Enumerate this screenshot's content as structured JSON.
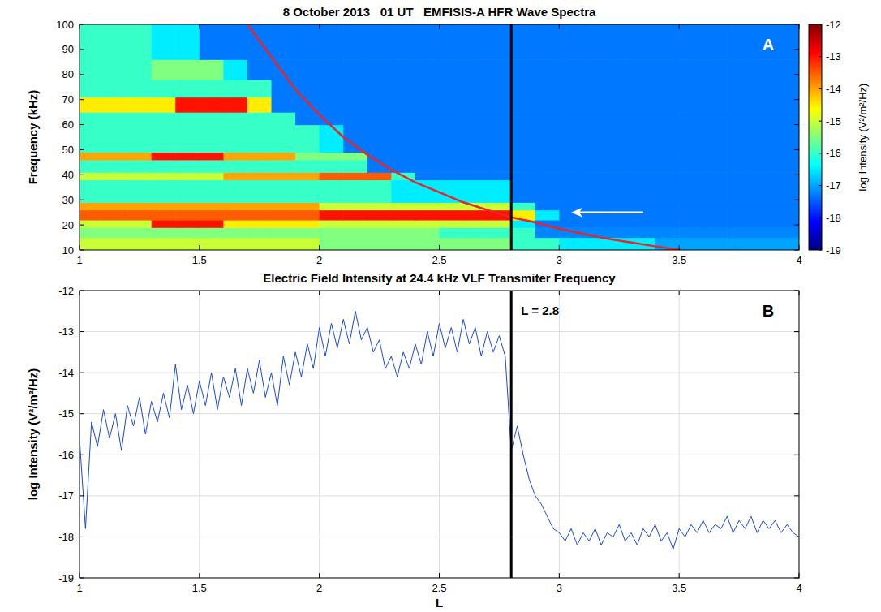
{
  "chart_data": [
    {
      "type": "heatmap",
      "title": "8 October 2013   01 UT   EMFISIS-A HFR Wave Spectra",
      "y_label": "Frequency (kHz)",
      "panel_label": "A",
      "xlim": [
        1,
        4
      ],
      "xticks": [
        1,
        1.5,
        2,
        2.5,
        3,
        3.5,
        4
      ],
      "ylim": [
        10,
        100
      ],
      "yticks": [
        10,
        20,
        30,
        40,
        50,
        60,
        70,
        80,
        90,
        100
      ],
      "grid": false,
      "x_edges": [
        1,
        1.1,
        1.2,
        1.3,
        1.4,
        1.5,
        1.6,
        1.7,
        1.8,
        1.9,
        2,
        2.1,
        2.2,
        2.3,
        2.4,
        2.5,
        2.6,
        2.7,
        2.8,
        2.9,
        3,
        3.1,
        3.2,
        3.3,
        3.4,
        3.5,
        3.6,
        3.7,
        3.8,
        3.9,
        4
      ],
      "y_edges": [
        10,
        15,
        19,
        22,
        26,
        29,
        38,
        41,
        46,
        49,
        60,
        65,
        71,
        78,
        86,
        100
      ],
      "cells": [
        [
          -15,
          -15,
          -15,
          -15,
          -15,
          -15,
          -15,
          -15,
          -15,
          -15,
          -15.5,
          -15.5,
          -15.5,
          -15.5,
          -15.5,
          -15.5,
          -15.5,
          -15.5,
          -16,
          -16,
          -16.5,
          -16.5,
          -16.5,
          -16.5,
          -17,
          -17,
          -17,
          -17,
          -17,
          -17
        ],
        [
          -15.5,
          -15.5,
          -15.5,
          -15.5,
          -15.5,
          -15.5,
          -15.5,
          -15.5,
          -15.5,
          -15.5,
          -15.5,
          -15.5,
          -15.5,
          -15.5,
          -15.5,
          -16,
          -16,
          -16,
          -16,
          -17.2,
          -17.2,
          -17.2,
          -17.2,
          -17.2,
          -17.2,
          -17.2,
          -17.2,
          -17.2,
          -17.2,
          -17.2
        ],
        [
          -15,
          -15,
          -15,
          -13,
          -13,
          -13,
          -14.5,
          -14.5,
          -14.5,
          -14.5,
          -15,
          -15,
          -15,
          -15,
          -15,
          -15,
          -15,
          -15,
          -16.5,
          -17.3,
          -17.3,
          -17.3,
          -17.3,
          -17.3,
          -17.3,
          -17.3,
          -17.3,
          -17.3,
          -17.3,
          -17.3
        ],
        [
          -13.5,
          -13.5,
          -13.5,
          -13.5,
          -13.5,
          -13.5,
          -13.5,
          -13.5,
          -13.5,
          -13.5,
          -13,
          -13,
          -13,
          -13,
          -13,
          -13,
          -13,
          -13,
          -14.5,
          -16.5,
          -17.3,
          -17.3,
          -17.3,
          -17.3,
          -17.3,
          -17.3,
          -17.3,
          -17.3,
          -17.3,
          -17.3
        ],
        [
          -14,
          -14,
          -14,
          -14,
          -14,
          -14,
          -14,
          -14,
          -14,
          -14,
          -15,
          -15,
          -15,
          -15,
          -15,
          -15,
          -15,
          -15,
          -16,
          -17.3,
          -17.3,
          -17.3,
          -17.3,
          -17.3,
          -17.3,
          -17.3,
          -17.3,
          -17.3,
          -17.3,
          -17.3
        ],
        [
          -16,
          -16,
          -16,
          -16,
          -16,
          -16,
          -16,
          -16,
          -16,
          -16,
          -16,
          -16,
          -16,
          -16.5,
          -16.5,
          -16.5,
          -16.5,
          -16.5,
          -17.3,
          -17.3,
          -17.3,
          -17.3,
          -17.3,
          -17.3,
          -17.3,
          -17.3,
          -17.3,
          -17.3,
          -17.3,
          -17.3
        ],
        [
          -15,
          -15,
          -15,
          -15,
          -15,
          -15,
          -14,
          -14,
          -14,
          -14,
          -13.5,
          -13.5,
          -13.5,
          -16,
          -17.3,
          -17.3,
          -17.3,
          -17.3,
          -17.3,
          -17.3,
          -17.3,
          -17.3,
          -17.3,
          -17.3,
          -17.3,
          -17.3,
          -17.3,
          -17.3,
          -17.3,
          -17.3
        ],
        [
          -16,
          -16,
          -16,
          -16,
          -16,
          -16,
          -16,
          -16,
          -16,
          -16,
          -16,
          -16,
          -17.3,
          -17.3,
          -17.3,
          -17.3,
          -17.3,
          -17.3,
          -17.3,
          -17.3,
          -17.3,
          -17.3,
          -17.3,
          -17.3,
          -17.3,
          -17.3,
          -17.3,
          -17.3,
          -17.3,
          -17.3
        ],
        [
          -14,
          -14,
          -14,
          -13,
          -13,
          -13,
          -14,
          -14,
          -14,
          -15.5,
          -15.5,
          -15.5,
          -17.3,
          -17.3,
          -17.3,
          -17.3,
          -17.3,
          -17.3,
          -17.3,
          -17.3,
          -17.3,
          -17.3,
          -17.3,
          -17.3,
          -17.3,
          -17.3,
          -17.3,
          -17.3,
          -17.3,
          -17.3
        ],
        [
          -16,
          -16,
          -16,
          -16,
          -16,
          -16,
          -16,
          -16,
          -16,
          -16,
          -16.5,
          -17.3,
          -17.3,
          -17.3,
          -17.3,
          -17.3,
          -17.3,
          -17.3,
          -17.3,
          -17.3,
          -17.3,
          -17.3,
          -17.3,
          -17.3,
          -17.3,
          -17.3,
          -17.3,
          -17.3,
          -17.3,
          -17.3
        ],
        [
          -16,
          -16,
          -16,
          -16,
          -16,
          -16,
          -16,
          -16,
          -16,
          -17.3,
          -17.3,
          -17.3,
          -17.3,
          -17.3,
          -17.3,
          -17.3,
          -17.3,
          -17.3,
          -17.3,
          -17.3,
          -17.3,
          -17.3,
          -17.3,
          -17.3,
          -17.3,
          -17.3,
          -17.3,
          -17.3,
          -17.3,
          -17.3
        ],
        [
          -14.5,
          -14.5,
          -14.5,
          -14.5,
          -13,
          -13,
          -13,
          -14.5,
          -17.3,
          -17.3,
          -17.3,
          -17.3,
          -17.3,
          -17.3,
          -17.3,
          -17.3,
          -17.3,
          -17.3,
          -17.3,
          -17.3,
          -17.3,
          -17.3,
          -17.3,
          -17.3,
          -17.3,
          -17.3,
          -17.3,
          -17.3,
          -17.3,
          -17.3
        ],
        [
          -16,
          -16,
          -16,
          -16,
          -16,
          -16,
          -16,
          -16,
          -17.3,
          -17.3,
          -17.3,
          -17.3,
          -17.3,
          -17.3,
          -17.3,
          -17.3,
          -17.3,
          -17.3,
          -17.3,
          -17.3,
          -17.3,
          -17.3,
          -17.3,
          -17.3,
          -17.3,
          -17.3,
          -17.3,
          -17.3,
          -17.3,
          -17.3
        ],
        [
          -16,
          -16,
          -16,
          -15.5,
          -15.5,
          -15.5,
          -16.5,
          -17.3,
          -17.3,
          -17.3,
          -17.3,
          -17.3,
          -17.3,
          -17.3,
          -17.3,
          -17.3,
          -17.3,
          -17.3,
          -17.3,
          -17.3,
          -17.3,
          -17.3,
          -17.3,
          -17.3,
          -17.3,
          -17.3,
          -17.3,
          -17.3,
          -17.3,
          -17.3
        ],
        [
          -16,
          -16,
          -16,
          -16.5,
          -16.5,
          -17.3,
          -17.3,
          -17.3,
          -17.3,
          -17.3,
          -17.3,
          -17.3,
          -17.3,
          -17.3,
          -17.3,
          -17.3,
          -17.3,
          -17.3,
          -17.3,
          -17.3,
          -17.3,
          -17.3,
          -17.3,
          -17.3,
          -17.3,
          -17.3,
          -17.3,
          -17.3,
          -17.3,
          -17.3
        ]
      ],
      "colorbar": {
        "label": "log Intensity (V²/m²/Hz)",
        "range": [
          -19,
          -12
        ],
        "ticks": [
          -12,
          -13,
          -14,
          -15,
          -16,
          -17,
          -18,
          -19
        ]
      },
      "series": [
        {
          "type": "line",
          "color": "#e8262a",
          "x": [
            1.7,
            1.8,
            1.9,
            2,
            2.1,
            2.2,
            2.3,
            2.4,
            2.5,
            2.6,
            2.7,
            2.8,
            2.9,
            3,
            3.1,
            3.2,
            3.3,
            3.4,
            3.5
          ],
          "values": [
            100,
            87,
            74,
            64,
            55,
            48,
            42,
            37,
            33,
            29,
            26,
            23,
            21,
            18.5,
            16.5,
            14.5,
            13,
            11.5,
            10
          ]
        }
      ],
      "reference_line": {
        "x": 2.8,
        "color": "#000000"
      },
      "arrow": {
        "x_from": 3.35,
        "x_to": 3.05,
        "y": 25,
        "color": "#ffffff"
      }
    },
    {
      "type": "line",
      "title": "Electric Field Intensity at 24.4 kHz VLF Transmiter Frequency",
      "x_label": "L",
      "y_label": "log Intensity (V²/m²/Hz)",
      "panel_label": "B",
      "xlim": [
        1,
        4
      ],
      "xticks": [
        1,
        1.5,
        2,
        2.5,
        3,
        3.5,
        4
      ],
      "ylim": [
        -19,
        -12
      ],
      "yticks": [
        -19,
        -18,
        -17,
        -16,
        -15,
        -14,
        -13,
        -12
      ],
      "grid": true,
      "series": [
        {
          "color": "#1a4ad6",
          "x": [
            1,
            1.025,
            1.05,
            1.075,
            1.1,
            1.125,
            1.15,
            1.175,
            1.2,
            1.225,
            1.25,
            1.275,
            1.3,
            1.325,
            1.35,
            1.375,
            1.4,
            1.425,
            1.45,
            1.475,
            1.5,
            1.525,
            1.55,
            1.575,
            1.6,
            1.625,
            1.65,
            1.675,
            1.7,
            1.725,
            1.75,
            1.775,
            1.8,
            1.825,
            1.85,
            1.875,
            1.9,
            1.925,
            1.95,
            1.975,
            2,
            2.025,
            2.05,
            2.075,
            2.1,
            2.125,
            2.15,
            2.175,
            2.2,
            2.225,
            2.25,
            2.275,
            2.3,
            2.325,
            2.35,
            2.375,
            2.4,
            2.425,
            2.45,
            2.475,
            2.5,
            2.525,
            2.55,
            2.575,
            2.6,
            2.625,
            2.65,
            2.675,
            2.7,
            2.725,
            2.75,
            2.775,
            2.8,
            2.825,
            2.85,
            2.875,
            2.9,
            2.925,
            2.95,
            2.975,
            3,
            3.025,
            3.05,
            3.075,
            3.1,
            3.125,
            3.15,
            3.175,
            3.2,
            3.225,
            3.25,
            3.275,
            3.3,
            3.325,
            3.35,
            3.375,
            3.4,
            3.425,
            3.45,
            3.475,
            3.5,
            3.525,
            3.55,
            3.575,
            3.6,
            3.625,
            3.65,
            3.675,
            3.7,
            3.725,
            3.75,
            3.775,
            3.8,
            3.825,
            3.85,
            3.875,
            3.9,
            3.925,
            3.95,
            3.975,
            4
          ],
          "values": [
            -15.6,
            -17.8,
            -15.2,
            -15.8,
            -14.9,
            -15.6,
            -15.0,
            -15.9,
            -14.8,
            -15.3,
            -14.6,
            -15.5,
            -14.7,
            -15.2,
            -14.5,
            -15.1,
            -13.8,
            -14.9,
            -14.3,
            -15.0,
            -14.2,
            -14.8,
            -14.0,
            -14.9,
            -14.1,
            -14.6,
            -13.9,
            -14.8,
            -13.9,
            -14.5,
            -13.7,
            -14.6,
            -14.0,
            -14.8,
            -13.6,
            -14.3,
            -13.5,
            -14.1,
            -13.3,
            -13.9,
            -12.9,
            -13.6,
            -12.8,
            -13.4,
            -12.7,
            -13.3,
            -12.5,
            -13.2,
            -12.9,
            -13.5,
            -13.2,
            -13.9,
            -13.6,
            -14.1,
            -13.5,
            -13.9,
            -13.3,
            -13.8,
            -13.0,
            -13.6,
            -12.8,
            -13.4,
            -12.9,
            -13.5,
            -12.7,
            -13.3,
            -12.9,
            -13.6,
            -13.0,
            -13.5,
            -13.1,
            -13.6,
            -15.9,
            -15.3,
            -16.0,
            -16.6,
            -17.0,
            -17.2,
            -17.5,
            -17.8,
            -17.9,
            -18.1,
            -17.8,
            -18.2,
            -17.9,
            -18.1,
            -17.8,
            -18.2,
            -17.9,
            -18.0,
            -17.7,
            -18.1,
            -17.9,
            -18.2,
            -17.8,
            -18.0,
            -17.7,
            -18.1,
            -17.9,
            -18.3,
            -17.8,
            -18.0,
            -17.7,
            -17.9,
            -17.6,
            -17.9,
            -17.7,
            -17.8,
            -17.5,
            -17.9,
            -17.6,
            -17.8,
            -17.5,
            -17.9,
            -17.6,
            -17.8,
            -17.6,
            -17.9,
            -17.7,
            -17.9,
            -18.0
          ]
        }
      ],
      "reference_line": {
        "x": 2.8,
        "color": "#000000"
      },
      "annotations": [
        {
          "text": "L = 2.8",
          "x": 2.8,
          "y": -12.5
        }
      ]
    }
  ]
}
